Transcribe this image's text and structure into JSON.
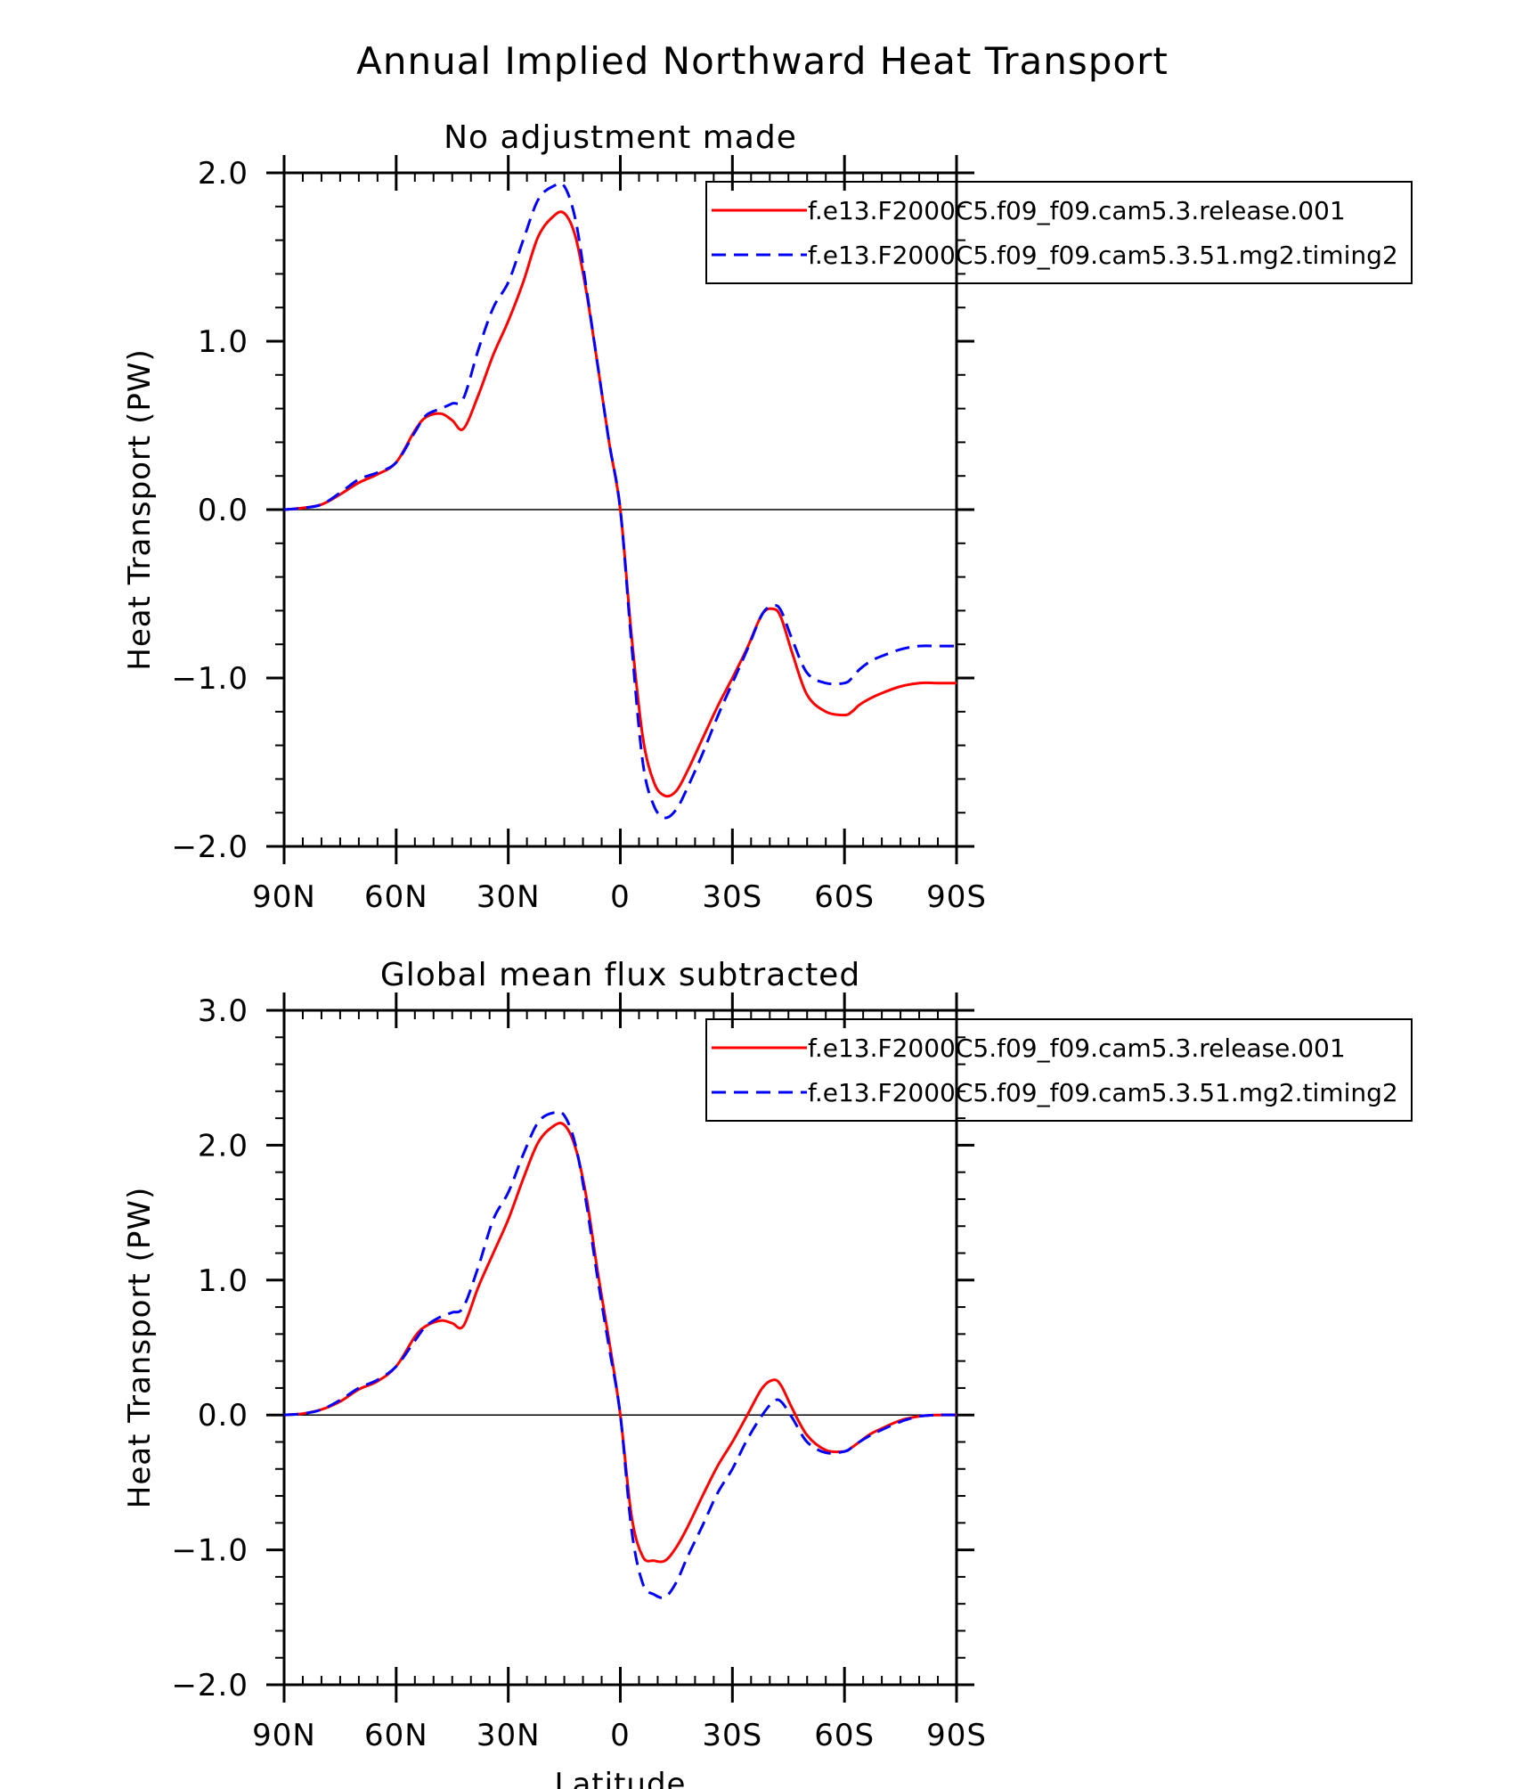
{
  "figure_title": "Annual Implied Northward Heat Transport",
  "colors": {
    "series_1": "#ff0000",
    "series_2": "#0000ff",
    "axes": "#000000",
    "background": "#ffffff"
  },
  "chart_data": [
    {
      "type": "line",
      "title": "No adjustment made",
      "xlabel": "",
      "ylabel": "Heat Transport (PW)",
      "xlim": [
        90,
        -90
      ],
      "ylim": [
        -2.0,
        2.0
      ],
      "x_tick_values": [
        90,
        60,
        30,
        0,
        -30,
        -60,
        -90
      ],
      "x_tick_labels": [
        "90N",
        "60N",
        "30N",
        "0",
        "30S",
        "60S",
        "90S"
      ],
      "y_tick_values": [
        2.0,
        1.0,
        0.0,
        -1.0,
        -2.0
      ],
      "y_tick_labels": [
        "2.0",
        "1.0",
        "0.0",
        "−1.0",
        "−2.0"
      ],
      "zero_line": true,
      "grid": false,
      "legend_position": "top-right",
      "series": [
        {
          "name": "f.e13.F2000C5.f09_f09.cam5.3.release.001",
          "style": "solid",
          "x": [
            90,
            85,
            80,
            75,
            70,
            65,
            60,
            55,
            52,
            48,
            45,
            42,
            38,
            34,
            30,
            26,
            22,
            18,
            15,
            12,
            9,
            6,
            3,
            0,
            -3,
            -6,
            -9,
            -12,
            -15,
            -18,
            -22,
            -26,
            -30,
            -34,
            -38,
            -41,
            -43,
            -46,
            -50,
            -55,
            -60,
            -62,
            -64,
            -67,
            -70,
            -75,
            -80,
            -85,
            -90
          ],
          "y": [
            0.0,
            0.01,
            0.03,
            0.09,
            0.16,
            0.21,
            0.28,
            0.47,
            0.55,
            0.57,
            0.53,
            0.48,
            0.68,
            0.92,
            1.12,
            1.35,
            1.62,
            1.74,
            1.76,
            1.62,
            1.28,
            0.85,
            0.4,
            0.0,
            -0.75,
            -1.35,
            -1.62,
            -1.7,
            -1.67,
            -1.55,
            -1.36,
            -1.17,
            -1.0,
            -0.82,
            -0.62,
            -0.59,
            -0.64,
            -0.85,
            -1.1,
            -1.2,
            -1.22,
            -1.2,
            -1.16,
            -1.12,
            -1.09,
            -1.05,
            -1.03,
            -1.03,
            -1.03
          ]
        },
        {
          "name": "f.e13.F2000C5.f09_f09.cam5.3.51.mg2.timing2",
          "style": "dashed",
          "x": [
            90,
            85,
            80,
            75,
            70,
            65,
            60,
            55,
            52,
            48,
            45,
            42,
            38,
            34,
            30,
            26,
            22,
            18,
            15,
            12,
            9,
            6,
            3,
            0,
            -3,
            -6,
            -9,
            -12,
            -15,
            -18,
            -22,
            -26,
            -30,
            -34,
            -38,
            -41,
            -43,
            -46,
            -50,
            -55,
            -60,
            -62,
            -64,
            -67,
            -70,
            -75,
            -80,
            -85,
            -90
          ],
          "y": [
            0.0,
            0.01,
            0.03,
            0.1,
            0.18,
            0.22,
            0.28,
            0.46,
            0.56,
            0.6,
            0.63,
            0.66,
            0.95,
            1.2,
            1.35,
            1.6,
            1.84,
            1.92,
            1.92,
            1.72,
            1.3,
            0.85,
            0.4,
            0.0,
            -0.8,
            -1.5,
            -1.76,
            -1.83,
            -1.78,
            -1.65,
            -1.45,
            -1.23,
            -1.03,
            -0.83,
            -0.62,
            -0.57,
            -0.6,
            -0.77,
            -0.97,
            -1.03,
            -1.03,
            -1.0,
            -0.95,
            -0.9,
            -0.87,
            -0.83,
            -0.81,
            -0.81,
            -0.81
          ]
        }
      ]
    },
    {
      "type": "line",
      "title": "Global mean flux subtracted",
      "xlabel": "Latitude",
      "ylabel": "Heat Transport (PW)",
      "xlim": [
        90,
        -90
      ],
      "ylim": [
        -2.0,
        3.0
      ],
      "x_tick_values": [
        90,
        60,
        30,
        0,
        -30,
        -60,
        -90
      ],
      "x_tick_labels": [
        "90N",
        "60N",
        "30N",
        "0",
        "30S",
        "60S",
        "90S"
      ],
      "y_tick_values": [
        3.0,
        2.0,
        1.0,
        0.0,
        -1.0,
        -2.0
      ],
      "y_tick_labels": [
        "3.0",
        "2.0",
        "1.0",
        "0.0",
        "−1.0",
        "−2.0"
      ],
      "zero_line": true,
      "grid": false,
      "legend_position": "top-right",
      "series": [
        {
          "name": "f.e13.F2000C5.f09_f09.cam5.3.release.001",
          "style": "solid",
          "x": [
            90,
            85,
            80,
            75,
            70,
            65,
            60,
            55,
            52,
            48,
            45,
            42,
            38,
            34,
            30,
            26,
            22,
            18,
            15,
            12,
            9,
            6,
            3,
            0,
            -3,
            -6,
            -9,
            -12,
            -15,
            -18,
            -22,
            -26,
            -30,
            -34,
            -38,
            -41,
            -43,
            -46,
            -50,
            -55,
            -60,
            -62,
            -64,
            -67,
            -70,
            -75,
            -80,
            -85,
            -90
          ],
          "y": [
            0.0,
            0.01,
            0.04,
            0.1,
            0.19,
            0.25,
            0.36,
            0.58,
            0.66,
            0.7,
            0.68,
            0.66,
            0.95,
            1.2,
            1.45,
            1.75,
            2.02,
            2.14,
            2.15,
            1.98,
            1.6,
            1.05,
            0.55,
            0.0,
            -0.75,
            -1.05,
            -1.08,
            -1.08,
            -0.98,
            -0.83,
            -0.6,
            -0.38,
            -0.2,
            0.0,
            0.2,
            0.26,
            0.22,
            0.05,
            -0.15,
            -0.26,
            -0.27,
            -0.24,
            -0.2,
            -0.14,
            -0.1,
            -0.04,
            -0.01,
            0.0,
            0.0
          ]
        },
        {
          "name": "f.e13.F2000C5.f09_f09.cam5.3.51.mg2.timing2",
          "style": "dashed",
          "x": [
            90,
            85,
            80,
            75,
            70,
            65,
            60,
            55,
            52,
            48,
            45,
            42,
            38,
            34,
            30,
            26,
            22,
            18,
            15,
            12,
            9,
            6,
            3,
            0,
            -3,
            -6,
            -9,
            -12,
            -15,
            -18,
            -22,
            -26,
            -30,
            -34,
            -38,
            -41,
            -43,
            -46,
            -50,
            -55,
            -60,
            -62,
            -64,
            -67,
            -70,
            -75,
            -80,
            -85,
            -90
          ],
          "y": [
            0.0,
            0.01,
            0.04,
            0.11,
            0.2,
            0.26,
            0.36,
            0.55,
            0.66,
            0.73,
            0.76,
            0.8,
            1.1,
            1.45,
            1.65,
            1.93,
            2.17,
            2.24,
            2.22,
            2.0,
            1.55,
            1.0,
            0.5,
            0.0,
            -0.85,
            -1.25,
            -1.33,
            -1.35,
            -1.24,
            -1.05,
            -0.82,
            -0.58,
            -0.4,
            -0.18,
            0.0,
            0.1,
            0.1,
            -0.02,
            -0.2,
            -0.28,
            -0.27,
            -0.24,
            -0.2,
            -0.15,
            -0.11,
            -0.05,
            -0.01,
            0.0,
            0.0
          ]
        }
      ]
    }
  ]
}
